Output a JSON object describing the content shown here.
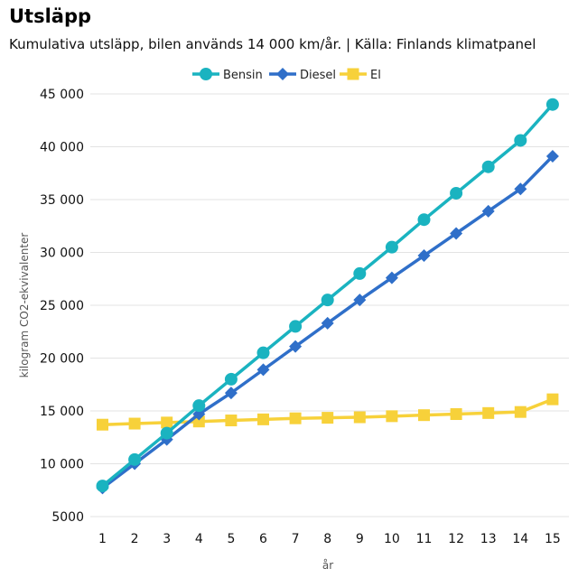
{
  "chart_data": {
    "type": "line",
    "title": "Utsläpp",
    "subtitle": "Kumulativa utsläpp, bilen används 14 000 km/år. | Källa: Finlands klimatpanel",
    "xlabel": "år",
    "ylabel": "kilogram CO2-ekvivalenter",
    "x": [
      1,
      2,
      3,
      4,
      5,
      6,
      7,
      8,
      9,
      10,
      11,
      12,
      13,
      14,
      15
    ],
    "ylim": [
      5000,
      45000
    ],
    "yticks": [
      5000,
      10000,
      15000,
      20000,
      25000,
      30000,
      35000,
      40000,
      45000
    ],
    "ytick_labels": [
      "5000",
      "10 000",
      "15 000",
      "20 000",
      "25 000",
      "30 000",
      "35 000",
      "40 000",
      "45 000"
    ],
    "grid": "horizontal",
    "legend_position": "top",
    "series": [
      {
        "name": "Bensin",
        "color": "#1ab3c0",
        "marker": "circle",
        "values": [
          7900,
          10400,
          12900,
          15500,
          18000,
          20500,
          23000,
          25500,
          28000,
          30500,
          33100,
          35600,
          38100,
          40600,
          44000
        ]
      },
      {
        "name": "Diesel",
        "color": "#2f6fc9",
        "marker": "diamond",
        "values": [
          7700,
          10000,
          12300,
          14700,
          16700,
          18900,
          21100,
          23300,
          25500,
          27600,
          29700,
          31800,
          33900,
          36000,
          39100
        ]
      },
      {
        "name": "El",
        "color": "#f7d13a",
        "marker": "square",
        "values": [
          13700,
          13800,
          13900,
          14000,
          14100,
          14200,
          14300,
          14350,
          14400,
          14500,
          14600,
          14700,
          14800,
          14900,
          16100
        ]
      }
    ]
  }
}
